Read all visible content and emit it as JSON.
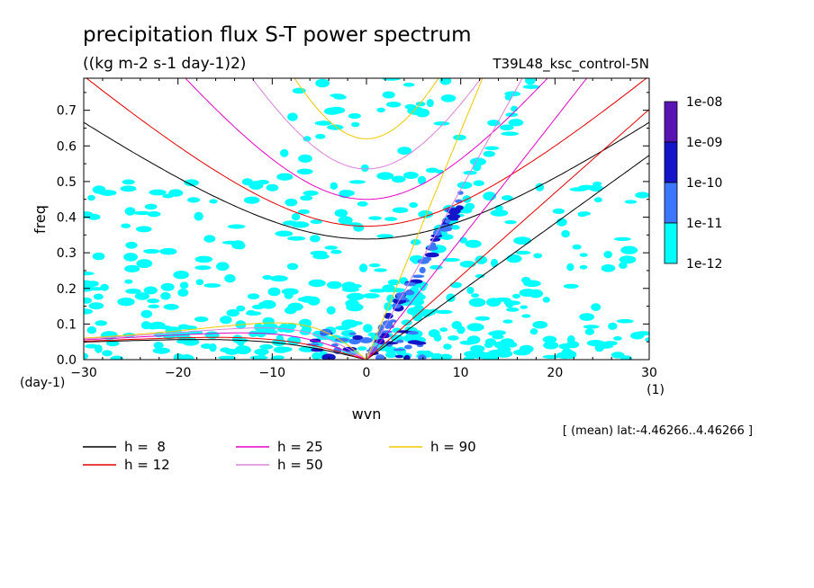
{
  "chart_data": {
    "type": "contour",
    "title": "precipitation flux S-T power spectrum",
    "subtitle": "((kg m-2 s-1 day-1)2)",
    "run_label": "T39L48_ksc_control-5N",
    "xlabel": "wvn",
    "ylabel": "freq",
    "x_unit_label": "(1)",
    "y_unit_label": "(day-1)",
    "xlim": [
      -30,
      30
    ],
    "ylim": [
      0,
      0.79
    ],
    "x_ticks": [
      -30,
      -20,
      -10,
      0,
      10,
      20,
      30
    ],
    "x_tick_labels": [
      "−30",
      "−20",
      "−10",
      "0",
      "10",
      "20",
      "30"
    ],
    "y_ticks": [
      0,
      0.1,
      0.2,
      0.3,
      0.4,
      0.5,
      0.6,
      0.7
    ],
    "y_tick_labels": [
      "0.0",
      "0.1",
      "0.2",
      "0.3",
      "0.4",
      "0.5",
      "0.6",
      "0.7"
    ],
    "footnote": "[ (mean) lat:-4.46266..4.46266 ]",
    "colorbar": {
      "labels": [
        "1e-08",
        "1e-09",
        "1e-10",
        "1e-11",
        "1e-12"
      ],
      "colors": [
        "#5a14b4",
        "#1414c8",
        "#3c78ff",
        "#00ffff"
      ]
    },
    "dispersion_curves": [
      {
        "name": "h =  8",
        "h": 8,
        "color": "#000000"
      },
      {
        "name": "h = 12",
        "h": 12,
        "color": "#e60000"
      },
      {
        "name": "h = 25",
        "h": 25,
        "color": "#e600c8"
      },
      {
        "name": "h = 50",
        "h": 50,
        "color": "#dc82dc"
      },
      {
        "name": "h = 90",
        "h": 90,
        "color": "#f0c800"
      }
    ],
    "fill_colors": {
      "light": "#00ffff",
      "medium": "#3c78ff",
      "dark": "#1414c8"
    }
  }
}
